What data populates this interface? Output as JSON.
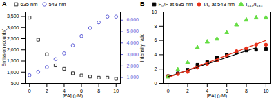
{
  "chart_data": [
    {
      "type": "scatter",
      "title": "A",
      "xlabel": "[PA] (μM)",
      "ylabel": "Emission (counts)",
      "x": [
        0,
        1,
        2,
        3,
        4,
        5,
        6,
        7,
        8,
        9,
        10
      ],
      "series": [
        {
          "name": "635 nm",
          "color": "#333333",
          "marker": "square",
          "values": [
            3450,
            2450,
            1800,
            1300,
            1150,
            950,
            850,
            800,
            750,
            750,
            700
          ]
        },
        {
          "name": "543 nm",
          "color": "#5b5bd6",
          "marker": "circle",
          "axis": "y2",
          "values": [
            1200,
            1500,
            1900,
            2600,
            3100,
            3800,
            4600,
            5300,
            5800,
            6300,
            6300
          ]
        }
      ],
      "xlim": [
        -0.5,
        10.5
      ],
      "xticks": [
        0,
        2,
        4,
        6,
        8,
        10
      ],
      "ylim": [
        500,
        3700
      ],
      "yticks": [
        500,
        1000,
        1500,
        2000,
        2500,
        3000,
        3500
      ],
      "y2lim": [
        500,
        6700
      ],
      "y2ticks": [
        1000,
        2000,
        3000,
        4000,
        5000,
        6000
      ]
    },
    {
      "type": "scatter",
      "title": "B",
      "xlabel": "[PA] (μM)",
      "ylabel": "Intensity ratio",
      "x": [
        0,
        1,
        2,
        3,
        4,
        5,
        6,
        7,
        8,
        9,
        10
      ],
      "series": [
        {
          "name": "F₀/F at 635 nm",
          "color": "#000000",
          "marker": "square",
          "values": [
            1,
            1.4,
            1.9,
            2.6,
            3.0,
            3.6,
            4.0,
            4.3,
            4.6,
            4.7,
            4.8
          ]
        },
        {
          "name": "I/I₀ at 543 nm",
          "color": "#e8311a",
          "marker": "circle",
          "values": [
            1,
            1.3,
            1.6,
            2.2,
            2.7,
            3.2,
            3.8,
            4.5,
            4.9,
            5.4,
            5.4
          ]
        },
        {
          "name": "I₅₄₃/I₆₃₅",
          "color": "#66dd44",
          "marker": "triangle",
          "values": [
            0.9,
            1.9,
            2.9,
            5.0,
            5.8,
            6.2,
            7.1,
            8.2,
            8.9,
            9.2,
            9.2
          ]
        },
        {
          "type": "line",
          "color": "#000000",
          "x": [
            0,
            9
          ],
          "values": [
            0.9,
            5.0
          ]
        },
        {
          "type": "line",
          "color": "#e8311a",
          "x": [
            0,
            10
          ],
          "values": [
            0.8,
            6.0
          ]
        }
      ],
      "xlim": [
        -0.5,
        10.5
      ],
      "xticks": [
        0,
        2,
        4,
        6,
        8,
        10
      ],
      "ylim": [
        0,
        10
      ],
      "yticks": [
        0,
        2,
        4,
        6,
        8,
        10
      ]
    }
  ]
}
